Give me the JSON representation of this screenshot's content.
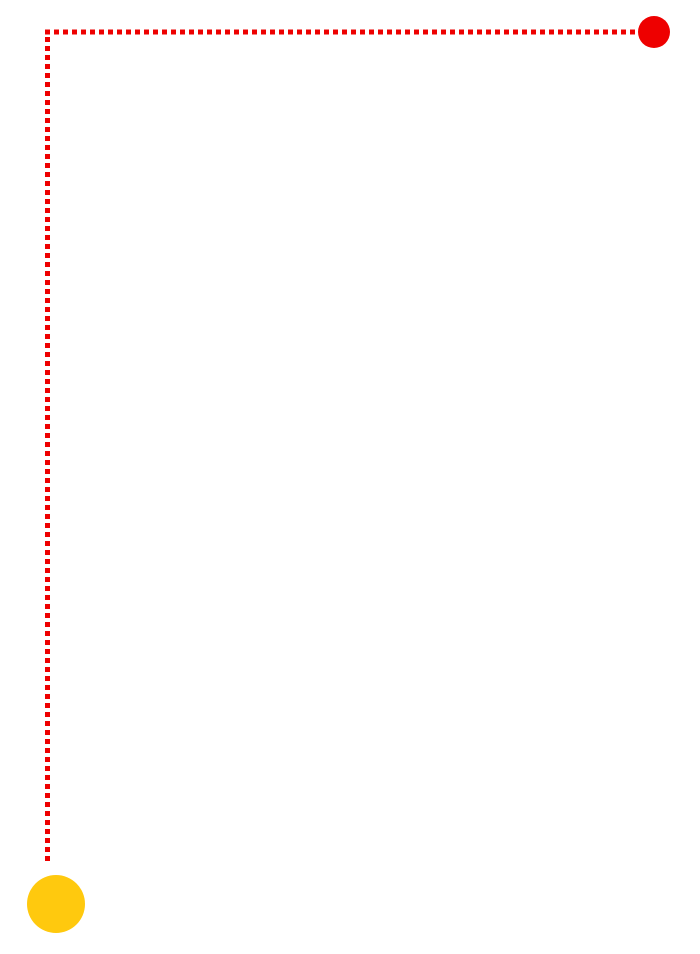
{
  "diagram": {
    "path": {
      "color": "#ee0000",
      "style": "dotted"
    },
    "start_node": {
      "color": "#ffc90e",
      "shape": "circle"
    },
    "end_node": {
      "color": "#ee0000",
      "shape": "circle"
    }
  }
}
